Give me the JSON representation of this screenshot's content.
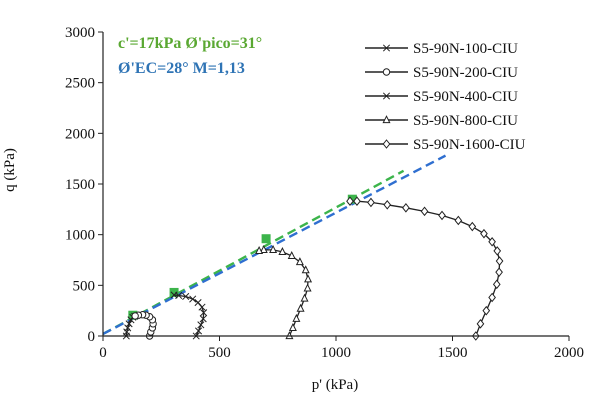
{
  "chart_data": {
    "type": "line",
    "title": "",
    "xlabel": "p' (kPa)",
    "ylabel": "q (kPa)",
    "xlim": [
      0,
      2000
    ],
    "ylim": [
      0,
      3000
    ],
    "x_ticks": [
      0,
      500,
      1000,
      1500,
      2000
    ],
    "y_ticks": [
      0,
      500,
      1000,
      1500,
      2000,
      2500,
      3000
    ],
    "grid": false,
    "legend_position": "top-right",
    "annotations": [
      {
        "text": "c'=17kPa Ø'pico=31°",
        "color": "#5aa832"
      },
      {
        "text": "Ø'EC=28° M=1,13",
        "color": "#2f74b5"
      }
    ],
    "envelopes": [
      {
        "color": "#3cb44b",
        "x": [
          0,
          1290
        ],
        "y": [
          20,
          1630
        ]
      },
      {
        "color": "#2f6fd0",
        "x": [
          0,
          1470
        ],
        "y": [
          20,
          1780
        ]
      }
    ],
    "peak_points": [
      {
        "color": "#3cb44b",
        "x": [
          128,
          305,
          700,
          1070
        ],
        "y": [
          205,
          430,
          960,
          1350
        ]
      }
    ],
    "series": [
      {
        "name": "S5-90N-100-CIU",
        "marker": "x",
        "x": [
          100,
          102,
          106,
          112,
          120,
          128,
          136
        ],
        "y": [
          0,
          40,
          80,
          120,
          160,
          185,
          195
        ]
      },
      {
        "name": "S5-90N-200-CIU",
        "marker": "circle",
        "x": [
          200,
          205,
          212,
          215,
          212,
          200,
          185,
          170,
          152,
          138
        ],
        "y": [
          0,
          40,
          80,
          120,
          160,
          190,
          205,
          210,
          205,
          198
        ]
      },
      {
        "name": "S5-90N-400-CIU",
        "marker": "x",
        "x": [
          400,
          410,
          420,
          430,
          432,
          425,
          408,
          385,
          355,
          325,
          305
        ],
        "y": [
          0,
          50,
          110,
          170,
          230,
          285,
          330,
          365,
          390,
          400,
          405
        ]
      },
      {
        "name": "S5-90N-800-CIU",
        "marker": "triangle",
        "x": [
          800,
          815,
          830,
          848,
          865,
          878,
          880,
          870,
          845,
          810,
          770,
          730,
          690,
          670
        ],
        "y": [
          0,
          80,
          170,
          270,
          370,
          470,
          560,
          650,
          730,
          790,
          830,
          850,
          850,
          840
        ]
      },
      {
        "name": "S5-90N-1600-CIU",
        "marker": "diamond",
        "x": [
          1600,
          1620,
          1645,
          1670,
          1690,
          1700,
          1702,
          1692,
          1670,
          1635,
          1585,
          1525,
          1455,
          1380,
          1300,
          1220,
          1150,
          1090,
          1060
        ],
        "y": [
          0,
          120,
          250,
          380,
          510,
          630,
          740,
          840,
          930,
          1010,
          1080,
          1140,
          1190,
          1230,
          1265,
          1295,
          1318,
          1330,
          1330
        ]
      }
    ]
  }
}
